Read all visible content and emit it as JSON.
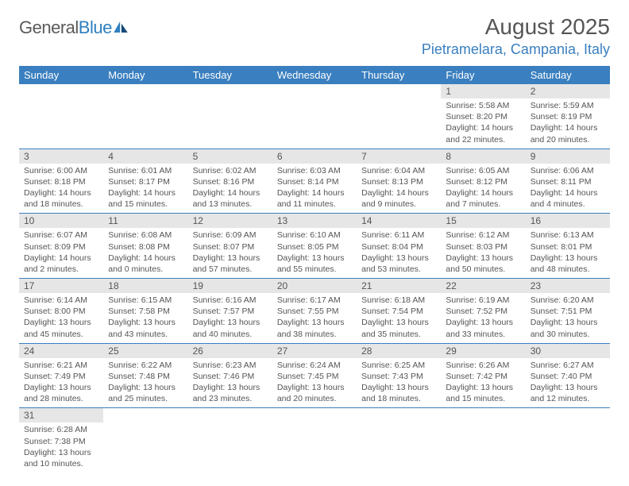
{
  "brand": {
    "name_part1": "General",
    "name_part2": "Blue"
  },
  "header": {
    "month_title": "August 2025",
    "location": "Pietramelara, Campania, Italy"
  },
  "colors": {
    "primary": "#3a7fbf",
    "daynum_bg": "#e6e6e6",
    "text": "#555555",
    "white": "#ffffff"
  },
  "typography": {
    "month_title_fontsize": 28,
    "location_fontsize": 18,
    "dow_fontsize": 13,
    "daynum_fontsize": 12,
    "body_fontsize": 10.5
  },
  "calendar": {
    "columns": [
      "Sunday",
      "Monday",
      "Tuesday",
      "Wednesday",
      "Thursday",
      "Friday",
      "Saturday"
    ],
    "weeks": [
      [
        null,
        null,
        null,
        null,
        null,
        {
          "d": "1",
          "sr": "5:58 AM",
          "ss": "8:20 PM",
          "dl": "14 hours and 22 minutes."
        },
        {
          "d": "2",
          "sr": "5:59 AM",
          "ss": "8:19 PM",
          "dl": "14 hours and 20 minutes."
        }
      ],
      [
        {
          "d": "3",
          "sr": "6:00 AM",
          "ss": "8:18 PM",
          "dl": "14 hours and 18 minutes."
        },
        {
          "d": "4",
          "sr": "6:01 AM",
          "ss": "8:17 PM",
          "dl": "14 hours and 15 minutes."
        },
        {
          "d": "5",
          "sr": "6:02 AM",
          "ss": "8:16 PM",
          "dl": "14 hours and 13 minutes."
        },
        {
          "d": "6",
          "sr": "6:03 AM",
          "ss": "8:14 PM",
          "dl": "14 hours and 11 minutes."
        },
        {
          "d": "7",
          "sr": "6:04 AM",
          "ss": "8:13 PM",
          "dl": "14 hours and 9 minutes."
        },
        {
          "d": "8",
          "sr": "6:05 AM",
          "ss": "8:12 PM",
          "dl": "14 hours and 7 minutes."
        },
        {
          "d": "9",
          "sr": "6:06 AM",
          "ss": "8:11 PM",
          "dl": "14 hours and 4 minutes."
        }
      ],
      [
        {
          "d": "10",
          "sr": "6:07 AM",
          "ss": "8:09 PM",
          "dl": "14 hours and 2 minutes."
        },
        {
          "d": "11",
          "sr": "6:08 AM",
          "ss": "8:08 PM",
          "dl": "14 hours and 0 minutes."
        },
        {
          "d": "12",
          "sr": "6:09 AM",
          "ss": "8:07 PM",
          "dl": "13 hours and 57 minutes."
        },
        {
          "d": "13",
          "sr": "6:10 AM",
          "ss": "8:05 PM",
          "dl": "13 hours and 55 minutes."
        },
        {
          "d": "14",
          "sr": "6:11 AM",
          "ss": "8:04 PM",
          "dl": "13 hours and 53 minutes."
        },
        {
          "d": "15",
          "sr": "6:12 AM",
          "ss": "8:03 PM",
          "dl": "13 hours and 50 minutes."
        },
        {
          "d": "16",
          "sr": "6:13 AM",
          "ss": "8:01 PM",
          "dl": "13 hours and 48 minutes."
        }
      ],
      [
        {
          "d": "17",
          "sr": "6:14 AM",
          "ss": "8:00 PM",
          "dl": "13 hours and 45 minutes."
        },
        {
          "d": "18",
          "sr": "6:15 AM",
          "ss": "7:58 PM",
          "dl": "13 hours and 43 minutes."
        },
        {
          "d": "19",
          "sr": "6:16 AM",
          "ss": "7:57 PM",
          "dl": "13 hours and 40 minutes."
        },
        {
          "d": "20",
          "sr": "6:17 AM",
          "ss": "7:55 PM",
          "dl": "13 hours and 38 minutes."
        },
        {
          "d": "21",
          "sr": "6:18 AM",
          "ss": "7:54 PM",
          "dl": "13 hours and 35 minutes."
        },
        {
          "d": "22",
          "sr": "6:19 AM",
          "ss": "7:52 PM",
          "dl": "13 hours and 33 minutes."
        },
        {
          "d": "23",
          "sr": "6:20 AM",
          "ss": "7:51 PM",
          "dl": "13 hours and 30 minutes."
        }
      ],
      [
        {
          "d": "24",
          "sr": "6:21 AM",
          "ss": "7:49 PM",
          "dl": "13 hours and 28 minutes."
        },
        {
          "d": "25",
          "sr": "6:22 AM",
          "ss": "7:48 PM",
          "dl": "13 hours and 25 minutes."
        },
        {
          "d": "26",
          "sr": "6:23 AM",
          "ss": "7:46 PM",
          "dl": "13 hours and 23 minutes."
        },
        {
          "d": "27",
          "sr": "6:24 AM",
          "ss": "7:45 PM",
          "dl": "13 hours and 20 minutes."
        },
        {
          "d": "28",
          "sr": "6:25 AM",
          "ss": "7:43 PM",
          "dl": "13 hours and 18 minutes."
        },
        {
          "d": "29",
          "sr": "6:26 AM",
          "ss": "7:42 PM",
          "dl": "13 hours and 15 minutes."
        },
        {
          "d": "30",
          "sr": "6:27 AM",
          "ss": "7:40 PM",
          "dl": "13 hours and 12 minutes."
        }
      ],
      [
        {
          "d": "31",
          "sr": "6:28 AM",
          "ss": "7:38 PM",
          "dl": "13 hours and 10 minutes."
        },
        null,
        null,
        null,
        null,
        null,
        null
      ]
    ],
    "labels": {
      "sunrise": "Sunrise:",
      "sunset": "Sunset:",
      "daylight": "Daylight:"
    }
  }
}
